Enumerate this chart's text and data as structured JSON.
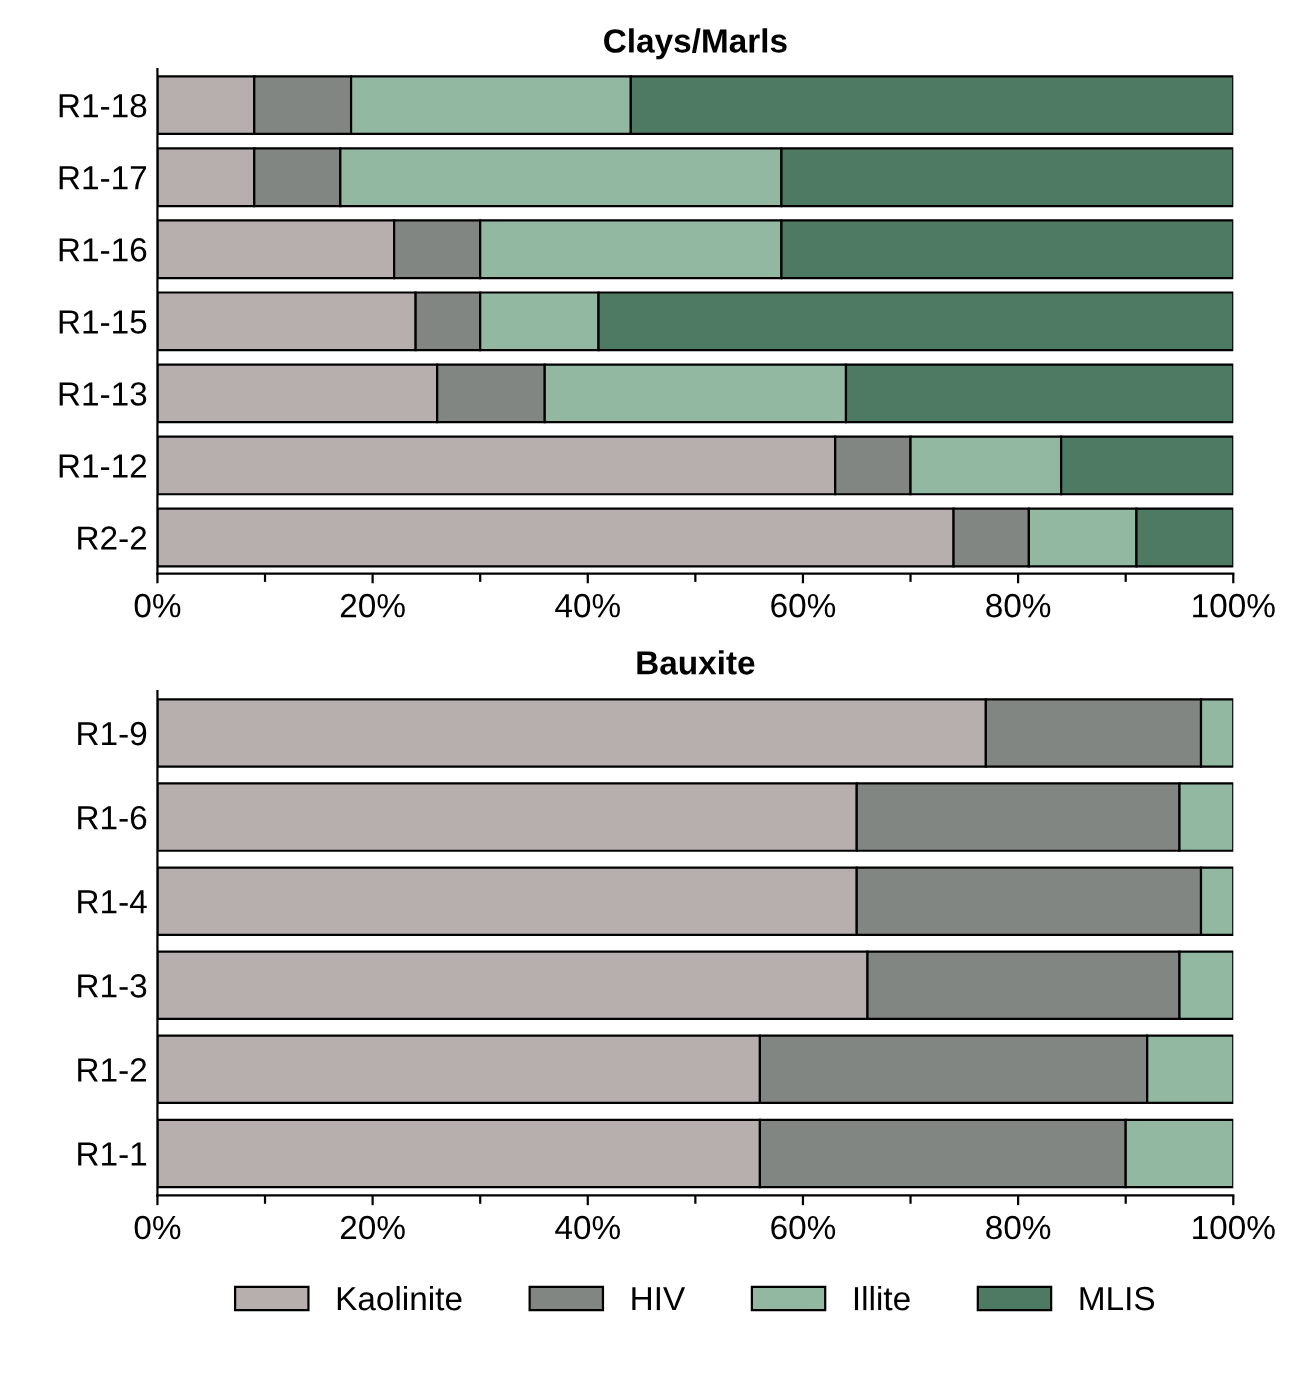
{
  "chart_data": [
    {
      "type": "bar",
      "title": "Clays/Marls",
      "orientation": "horizontal",
      "stacked": true,
      "legend": false,
      "grid": false,
      "categories": [
        "R1-18",
        "R1-17",
        "R1-16",
        "R1-15",
        "R1-13",
        "R1-12",
        "R2-2"
      ],
      "xlim": [
        0,
        100
      ],
      "xticks": [
        {
          "value": 0,
          "label": "0%"
        },
        {
          "value": 10,
          "label": null
        },
        {
          "value": 20,
          "label": "20%"
        },
        {
          "value": 30,
          "label": null
        },
        {
          "value": 40,
          "label": "40%"
        },
        {
          "value": 50,
          "label": null
        },
        {
          "value": 60,
          "label": "60%"
        },
        {
          "value": 70,
          "label": null
        },
        {
          "value": 80,
          "label": "80%"
        },
        {
          "value": 90,
          "label": null
        },
        {
          "value": 100,
          "label": "100%"
        }
      ],
      "series": [
        {
          "color": "#b7afad",
          "values": [
            9,
            9,
            22,
            24,
            26,
            63,
            74
          ]
        },
        {
          "color": "#828682",
          "values": [
            9,
            8,
            8,
            6,
            10,
            7,
            7
          ]
        },
        {
          "color": "#92b8a2",
          "values": [
            26,
            41,
            28,
            11,
            28,
            14,
            10
          ]
        },
        {
          "color": "#4e7a63",
          "values": [
            56,
            42,
            42,
            59,
            36,
            16,
            9
          ]
        }
      ]
    },
    {
      "type": "bar",
      "title": "Bauxite",
      "orientation": "horizontal",
      "stacked": true,
      "legend": "bottom",
      "grid": false,
      "categories": [
        "R1-9",
        "R1-6",
        "R1-4",
        "R1-3",
        "R1-2",
        "R1-1"
      ],
      "xlim": [
        0,
        100
      ],
      "xticks": [
        {
          "value": 0,
          "label": "0%"
        },
        {
          "value": 10,
          "label": null
        },
        {
          "value": 20,
          "label": "20%"
        },
        {
          "value": 30,
          "label": null
        },
        {
          "value": 40,
          "label": "40%"
        },
        {
          "value": 50,
          "label": null
        },
        {
          "value": 60,
          "label": "60%"
        },
        {
          "value": 70,
          "label": null
        },
        {
          "value": 80,
          "label": "80%"
        },
        {
          "value": 90,
          "label": null
        },
        {
          "value": 100,
          "label": "100%"
        }
      ],
      "series": [
        {
          "name": "Kaolinite",
          "color": "#b7afad",
          "values": [
            77,
            65,
            65,
            66,
            56,
            56
          ]
        },
        {
          "name": "HIV",
          "color": "#828682",
          "values": [
            20,
            30,
            32,
            29,
            36,
            34
          ]
        },
        {
          "name": "Illite",
          "color": "#92b8a2",
          "values": [
            3,
            5,
            3,
            5,
            8,
            10
          ]
        },
        {
          "name": "MLIS",
          "color": "#4e7a63",
          "values": [
            null,
            null,
            null,
            null,
            null,
            null
          ]
        }
      ]
    }
  ]
}
